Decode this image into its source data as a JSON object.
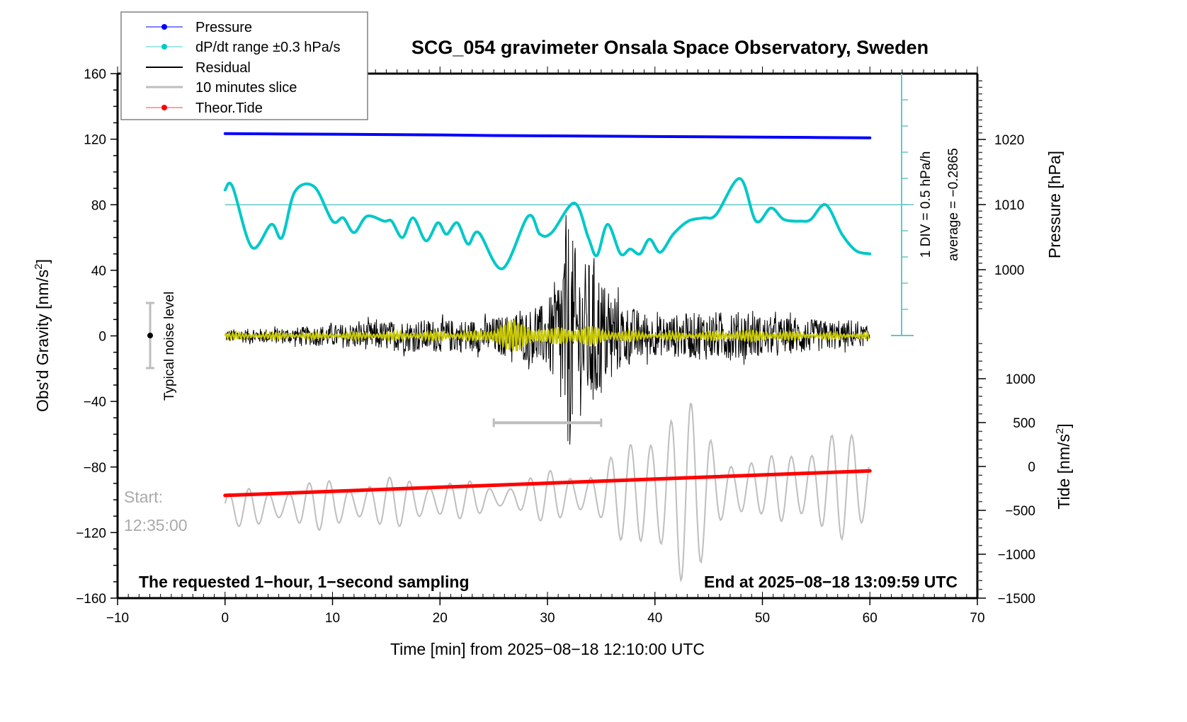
{
  "chart_data": {
    "type": "line",
    "title": "SCG_054 gravimeter Onsala Space Observatory, Sweden",
    "xlabel": "Time [min] from 2025−08−18 12:10:00 UTC",
    "ylabel_left": "Obs'd Gravity [nm/s²]",
    "ylabel_right_pressure": "Pressure [hPa]",
    "ylabel_right_tide": "Tide [nm/s²]",
    "xlim": [
      -10,
      70
    ],
    "ylim_left": [
      -160,
      160
    ],
    "x_ticks": [
      -10,
      0,
      10,
      20,
      30,
      40,
      50,
      60,
      70
    ],
    "x_tick_labels": [
      "−10",
      "0",
      "10",
      "20",
      "30",
      "40",
      "50",
      "60",
      "70"
    ],
    "y_left_ticks": [
      160,
      120,
      80,
      40,
      0,
      -40,
      -80,
      -120,
      -160
    ],
    "y_left_tick_labels": [
      "160",
      "120",
      "80",
      "40",
      "0",
      "−40",
      "−80",
      "−120",
      "−160"
    ],
    "pressure_ticks": [
      1020,
      1010,
      1000
    ],
    "pressure_tick_labels": [
      "1020",
      "1010",
      "1000"
    ],
    "tide_ticks": [
      1000,
      500,
      0,
      -500,
      -1000,
      -1500
    ],
    "tide_tick_labels": [
      "1000",
      "500",
      "0",
      "−500",
      "−1000",
      "−1500"
    ],
    "grid": false,
    "legend_position": "top-left",
    "legend": [
      {
        "label": "Pressure",
        "color": "#0000ff",
        "marker": "dot"
      },
      {
        "label": "dP/dt range ±0.3 hPa/s",
        "color": "#00c8c8",
        "marker": "dot"
      },
      {
        "label": "Residual",
        "color": "#000000",
        "marker": "line"
      },
      {
        "label": "10 minutes slice",
        "color": "#bebebe",
        "marker": "line"
      },
      {
        "label": "Theor.Tide",
        "color": "#ff0000",
        "marker": "dot"
      }
    ],
    "series": [
      {
        "name": "Pressure",
        "axis": "pressure_hPa",
        "color": "#0000ff",
        "x": [
          0,
          5,
          10,
          15,
          20,
          25,
          30,
          35,
          40,
          45,
          50,
          55,
          60
        ],
        "values": [
          1020.9,
          1020.85,
          1020.8,
          1020.75,
          1020.7,
          1020.6,
          1020.55,
          1020.5,
          1020.45,
          1020.4,
          1020.35,
          1020.3,
          1020.25
        ]
      },
      {
        "name": "dP/dt",
        "axis": "gravity_display",
        "color": "#00c8c8",
        "x": [
          0,
          0.7,
          2.5,
          4.3,
          5.3,
          6.5,
          8.3,
          10.0,
          11.0,
          12.0,
          13.2,
          14.8,
          15.5,
          16.5,
          17.5,
          18.7,
          19.8,
          20.6,
          21.6,
          22.6,
          23.6,
          25.8,
          28.2,
          29.3,
          30.4,
          32.5,
          33.8,
          34.6,
          35.6,
          36.8,
          37.7,
          38.6,
          39.5,
          40.5,
          41.7,
          43.1,
          44.5,
          45.7,
          47.9,
          49.4,
          50.8,
          52.0,
          53.6,
          54.5,
          55.9,
          57.4,
          58.7,
          60.0
        ],
        "values": [
          89,
          91,
          54,
          68,
          60,
          88,
          91,
          70,
          72,
          63,
          73,
          70,
          70,
          60,
          72,
          58,
          69,
          62,
          69,
          56,
          63,
          41,
          73,
          62,
          63,
          81,
          60,
          49,
          68,
          50,
          53,
          50,
          59,
          51,
          62,
          70,
          72,
          74,
          96,
          70,
          78,
          71,
          70,
          71,
          80,
          62,
          52,
          50
        ]
      },
      {
        "name": "Residual",
        "axis": "gravity",
        "color": "#000000",
        "note": "broadband noise; amplitude ~±5 nm/s² at start, peaking ~+75/−78 nm/s² near 31.8 min, secondary peak ~+55/−45 near 34.3 min, ~±15 afterwards",
        "x": [
          0,
          6,
          12,
          18,
          20,
          24,
          27,
          30,
          31,
          31.8,
          32.5,
          33.5,
          34.3,
          35.5,
          37,
          40,
          45,
          48,
          50,
          55,
          60
        ],
        "amplitude": [
          4,
          5,
          8,
          10,
          10,
          10,
          14,
          20,
          40,
          78,
          55,
          45,
          50,
          30,
          20,
          12,
          15,
          15,
          12,
          10,
          6
        ]
      },
      {
        "name": "Residual (filtered)",
        "axis": "gravity",
        "color": "#c8c800",
        "x": [
          0,
          10,
          20,
          24,
          25.5,
          28,
          30,
          32,
          35,
          40,
          46,
          48,
          55,
          60
        ],
        "amplitude": [
          2,
          2,
          3,
          3,
          10,
          10,
          4,
          8,
          5,
          2,
          3,
          4,
          2,
          2
        ]
      },
      {
        "name": "10 minutes slice",
        "axis": "tide_display",
        "color": "#bebebe",
        "note": "zoomed 10-minute window of residual (25–35 min) drawn over 0–60 min; oscillation amplitude ~±300 tide-units early, growing to ~±1300 near 40–42 min",
        "x": [
          0,
          10,
          20,
          25,
          30,
          35,
          38,
          40,
          42,
          44,
          46,
          50,
          55,
          58,
          60
        ],
        "amplitude": [
          200,
          300,
          280,
          150,
          300,
          350,
          650,
          1100,
          1250,
          900,
          600,
          300,
          700,
          600,
          550
        ]
      },
      {
        "name": "Theor.Tide",
        "axis": "tide",
        "color": "#ff0000",
        "x": [
          0,
          60
        ],
        "values": [
          -330,
          -50
        ]
      }
    ],
    "annotations": [
      {
        "text": "Typical noise level",
        "x": -7,
        "y_range": [
          -20,
          20
        ]
      },
      {
        "text": "10-minute slice window",
        "x_range": [
          25,
          35
        ],
        "y": -53
      },
      {
        "text": "1 DIV = 0.5 hPa/h"
      },
      {
        "text": "average = −0.2865"
      },
      {
        "text": "The requested 1−hour, 1−second sampling"
      },
      {
        "text": "End at 2025−08−18 13:09:59 UTC"
      },
      {
        "text": "Start:"
      },
      {
        "text": "12:35:00"
      }
    ]
  },
  "text": {
    "title": "SCG_054 gravimeter Onsala Space Observatory, Sweden",
    "xlabel": "Time [min] from 2025−08−18 12:10:00 UTC",
    "ylabel_left": "Obs'd Gravity [nm/s",
    "ylabel_left_sup": "2",
    "ylabel_left_end": "]",
    "ylabel_pressure": "Pressure [hPa]",
    "ylabel_tide": "Tide [nm/s",
    "ylabel_tide_sup": "2",
    "ylabel_tide_end": "]",
    "noise_label": "Typical noise level",
    "div_label": "1 DIV = 0.5 hPa/h",
    "avg_label": "average = −0.2865",
    "bottom_left_note": "The requested 1−hour, 1−second sampling",
    "bottom_right_note": "End at 2025−08−18 13:09:59 UTC",
    "start_label": "Start:",
    "start_time": "12:35:00",
    "legend": [
      "Pressure",
      "dP/dt range ±0.3 hPa/s",
      "Residual",
      "10 minutes slice",
      "Theor.Tide"
    ]
  }
}
